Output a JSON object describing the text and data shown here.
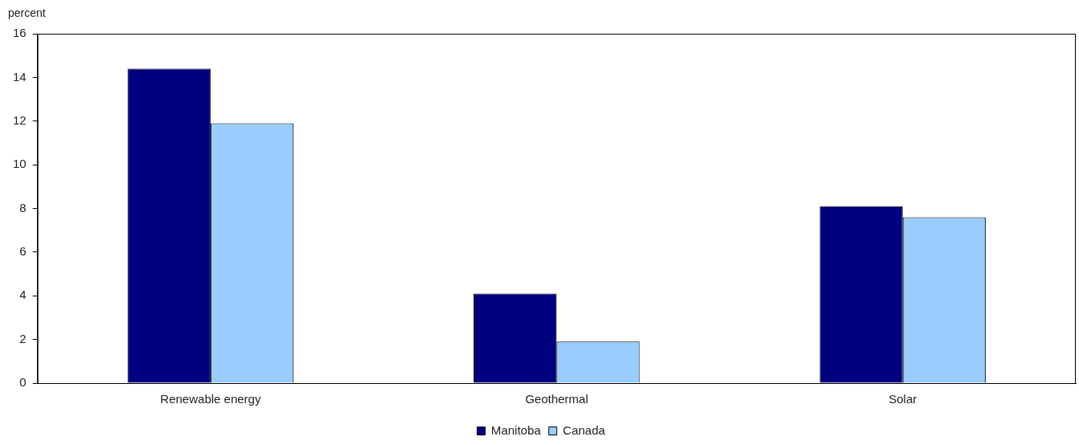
{
  "chart_data": {
    "type": "bar",
    "ylabel": "percent",
    "categories": [
      "Renewable energy",
      "Geothermal",
      "Solar"
    ],
    "series": [
      {
        "name": "Manitoba",
        "color": "#000080",
        "values": [
          14.4,
          4.1,
          8.1
        ]
      },
      {
        "name": "Canada",
        "color": "#99ccff",
        "values": [
          11.9,
          1.9,
          7.6
        ]
      }
    ],
    "ylim": [
      0,
      16
    ],
    "yticks": [
      0,
      2,
      4,
      6,
      8,
      10,
      12,
      14,
      16
    ],
    "grid": false,
    "legend": "bottom"
  }
}
